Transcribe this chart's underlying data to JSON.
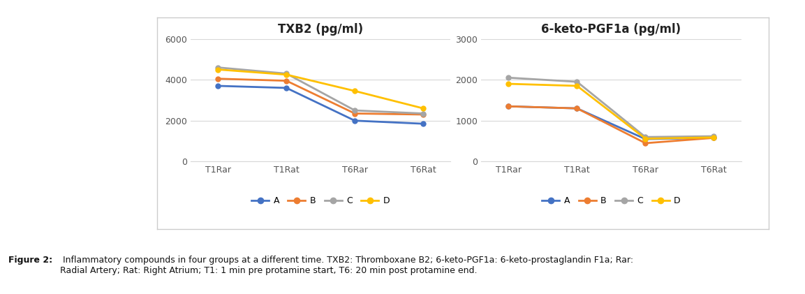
{
  "categories": [
    "T1Rar",
    "T1Rat",
    "T6Rar",
    "T6Rat"
  ],
  "chart1": {
    "title": "TXB2 (pg/ml)",
    "ylim": [
      0,
      6000
    ],
    "yticks": [
      0,
      2000,
      4000,
      6000
    ],
    "series": {
      "A": [
        3700,
        3600,
        2000,
        1850
      ],
      "B": [
        4050,
        3950,
        2350,
        2300
      ],
      "C": [
        4600,
        4300,
        2500,
        2350
      ],
      "D": [
        4500,
        4250,
        3450,
        2600
      ]
    }
  },
  "chart2": {
    "title": "6-keto-PGF1a (pg/ml)",
    "ylim": [
      0,
      3000
    ],
    "yticks": [
      0,
      1000,
      2000,
      3000
    ],
    "series": {
      "A": [
        1350,
        1300,
        550,
        580
      ],
      "B": [
        1350,
        1300,
        450,
        580
      ],
      "C": [
        2050,
        1950,
        600,
        620
      ],
      "D": [
        1900,
        1850,
        560,
        590
      ]
    }
  },
  "colors": {
    "A": "#4472C4",
    "B": "#ED7D31",
    "C": "#A5A5A5",
    "D": "#FFC000"
  },
  "caption_bold": "Figure 2:",
  "caption_normal": " Inflammatory compounds in four groups at a different time. TXB2: Thromboxane B2; 6-keto-PGF1a: 6-keto-prostaglandin F1a; Rar:\nRadial Artery; Rat: Right Atrium; T1: 1 min pre protamine start, T6: 20 min post protamine end.",
  "fig_bg": "#ffffff",
  "panel_bg": "#ffffff",
  "panel_border": "#cccccc",
  "grid_color": "#d8d8d8",
  "tick_color": "#555555",
  "title_color": "#222222"
}
